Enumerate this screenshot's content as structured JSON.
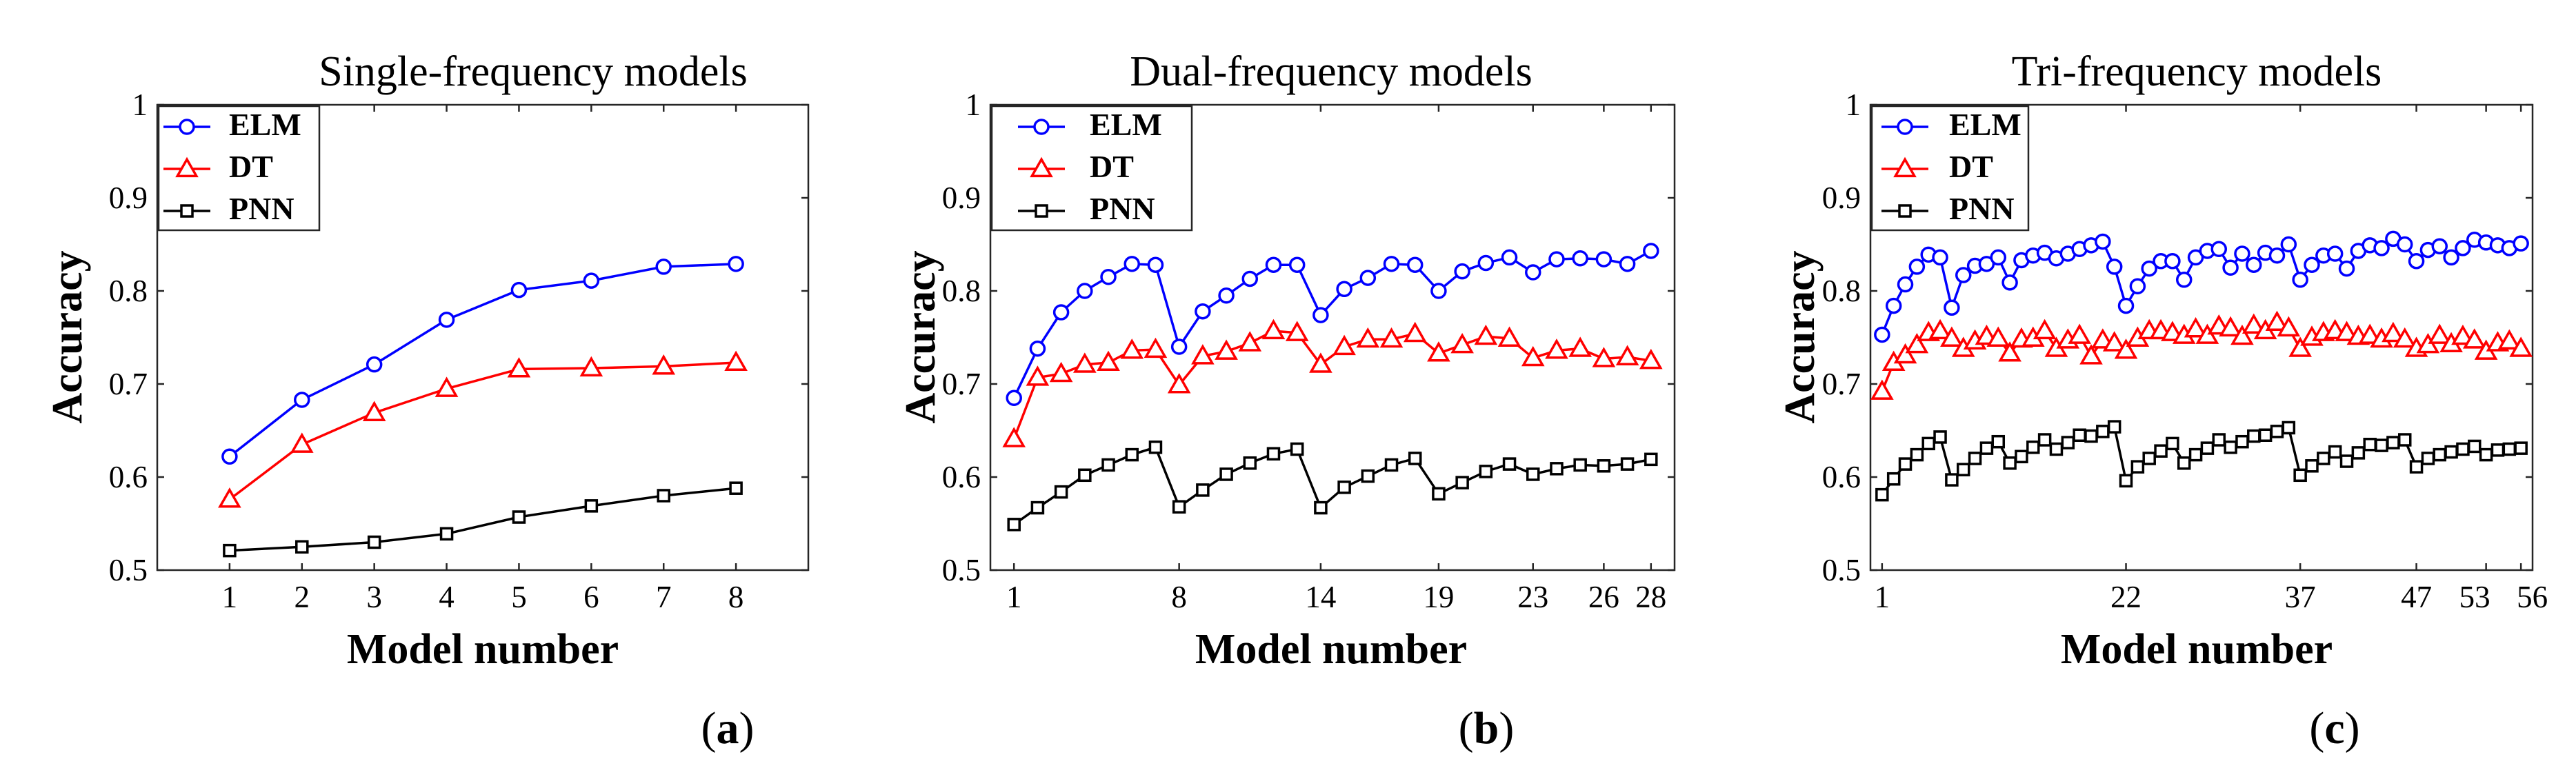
{
  "chart_data": [
    {
      "type": "line",
      "title": "Single-frequency models",
      "xlabel": "Model number",
      "ylabel": "Accuracy",
      "caption_pre": "(",
      "caption_letter": "a",
      "caption_post": ")",
      "xlim": [
        0,
        9
      ],
      "ylim": [
        0.5,
        1.0
      ],
      "yticks": [
        "0.5",
        "0.6",
        "0.7",
        "0.8",
        "0.9",
        "1"
      ],
      "ytick_values": [
        0.5,
        0.6,
        0.7,
        0.8,
        0.9,
        1.0
      ],
      "xticks": [
        1,
        2,
        3,
        4,
        5,
        6,
        7,
        8
      ],
      "x": [
        1,
        2,
        3,
        4,
        5,
        6,
        7,
        8
      ],
      "series": [
        {
          "name": "ELM",
          "color": "#0000ff",
          "marker": "circle",
          "values": [
            0.622,
            0.683,
            0.721,
            0.769,
            0.801,
            0.811,
            0.826,
            0.829
          ]
        },
        {
          "name": "DT",
          "color": "#ff0000",
          "marker": "triangle",
          "values": [
            0.576,
            0.635,
            0.669,
            0.695,
            0.716,
            0.717,
            0.719,
            0.723
          ]
        },
        {
          "name": "PNN",
          "color": "#000000",
          "marker": "square",
          "values": [
            0.521,
            0.525,
            0.53,
            0.539,
            0.557,
            0.569,
            0.58,
            0.588
          ]
        }
      ]
    },
    {
      "type": "line",
      "title": "Dual-frequency models",
      "xlabel": "Model number",
      "ylabel": "Accuracy",
      "caption_pre": "(",
      "caption_letter": "b",
      "caption_post": ")",
      "xlim": [
        0,
        29
      ],
      "ylim": [
        0.5,
        1.0
      ],
      "yticks": [
        "0.5",
        "0.6",
        "0.7",
        "0.8",
        "0.9",
        "1"
      ],
      "ytick_values": [
        0.5,
        0.6,
        0.7,
        0.8,
        0.9,
        1.0
      ],
      "xticks": [
        1,
        8,
        14,
        19,
        23,
        26,
        28
      ],
      "x": [
        1,
        2,
        3,
        4,
        5,
        6,
        7,
        8,
        9,
        10,
        11,
        12,
        13,
        14,
        15,
        16,
        17,
        18,
        19,
        20,
        21,
        22,
        23,
        24,
        25,
        26,
        27,
        28
      ],
      "series": [
        {
          "name": "ELM",
          "color": "#0000ff",
          "marker": "circle",
          "values": [
            0.685,
            0.738,
            0.777,
            0.8,
            0.815,
            0.829,
            0.828,
            0.74,
            0.778,
            0.795,
            0.813,
            0.828,
            0.828,
            0.774,
            0.802,
            0.814,
            0.829,
            0.828,
            0.8,
            0.821,
            0.83,
            0.836,
            0.82,
            0.834,
            0.835,
            0.834,
            0.829,
            0.843
          ]
        },
        {
          "name": "DT",
          "color": "#ff0000",
          "marker": "triangle",
          "values": [
            0.641,
            0.707,
            0.711,
            0.721,
            0.723,
            0.736,
            0.737,
            0.699,
            0.73,
            0.735,
            0.744,
            0.757,
            0.755,
            0.721,
            0.74,
            0.748,
            0.748,
            0.754,
            0.733,
            0.742,
            0.751,
            0.749,
            0.728,
            0.736,
            0.738,
            0.727,
            0.729,
            0.725
          ]
        },
        {
          "name": "PNN",
          "color": "#000000",
          "marker": "square",
          "values": [
            0.549,
            0.567,
            0.584,
            0.602,
            0.613,
            0.624,
            0.632,
            0.568,
            0.586,
            0.603,
            0.615,
            0.625,
            0.63,
            0.567,
            0.589,
            0.601,
            0.613,
            0.62,
            0.582,
            0.594,
            0.606,
            0.614,
            0.603,
            0.609,
            0.613,
            0.612,
            0.614,
            0.619
          ]
        }
      ]
    },
    {
      "type": "line",
      "title": "Tri-frequency models",
      "xlabel": "Model number",
      "ylabel": "Accuracy",
      "caption_pre": "(",
      "caption_letter": "c",
      "caption_post": ")",
      "xlim": [
        0,
        57
      ],
      "ylim": [
        0.5,
        1.0
      ],
      "yticks": [
        "0.5",
        "0.6",
        "0.7",
        "0.8",
        "0.9",
        "1"
      ],
      "ytick_values": [
        0.5,
        0.6,
        0.7,
        0.8,
        0.9,
        1.0
      ],
      "xticks": [
        1,
        22,
        37,
        47,
        53,
        56
      ],
      "xtick_labels": [
        "1",
        "22",
        "37",
        "47",
        "53",
        "56"
      ],
      "xtick_align": [
        "middle",
        "middle",
        "middle",
        "middle",
        "end",
        "start"
      ],
      "x": [
        1,
        2,
        3,
        4,
        5,
        6,
        7,
        8,
        9,
        10,
        11,
        12,
        13,
        14,
        15,
        16,
        17,
        18,
        19,
        20,
        21,
        22,
        23,
        24,
        25,
        26,
        27,
        28,
        29,
        30,
        31,
        32,
        33,
        34,
        35,
        36,
        37,
        38,
        39,
        40,
        41,
        42,
        43,
        44,
        45,
        46,
        47,
        48,
        49,
        50,
        51,
        52,
        53,
        54,
        55,
        56
      ],
      "series": [
        {
          "name": "ELM",
          "color": "#0000ff",
          "marker": "circle",
          "values": [
            0.753,
            0.784,
            0.807,
            0.826,
            0.839,
            0.836,
            0.782,
            0.817,
            0.827,
            0.829,
            0.836,
            0.809,
            0.833,
            0.838,
            0.841,
            0.835,
            0.84,
            0.845,
            0.849,
            0.853,
            0.826,
            0.784,
            0.805,
            0.824,
            0.832,
            0.832,
            0.812,
            0.836,
            0.843,
            0.845,
            0.825,
            0.84,
            0.828,
            0.841,
            0.838,
            0.85,
            0.812,
            0.828,
            0.838,
            0.84,
            0.824,
            0.843,
            0.849,
            0.846,
            0.856,
            0.85,
            0.832,
            0.844,
            0.848,
            0.836,
            0.846,
            0.855,
            0.852,
            0.849,
            0.846,
            0.851
          ]
        },
        {
          "name": "DT",
          "color": "#ff0000",
          "marker": "triangle",
          "values": [
            0.692,
            0.723,
            0.731,
            0.742,
            0.755,
            0.757,
            0.749,
            0.738,
            0.746,
            0.751,
            0.749,
            0.733,
            0.748,
            0.749,
            0.757,
            0.738,
            0.747,
            0.752,
            0.73,
            0.747,
            0.744,
            0.736,
            0.749,
            0.757,
            0.757,
            0.755,
            0.752,
            0.759,
            0.752,
            0.762,
            0.76,
            0.751,
            0.763,
            0.757,
            0.766,
            0.76,
            0.738,
            0.75,
            0.755,
            0.757,
            0.755,
            0.751,
            0.752,
            0.748,
            0.754,
            0.748,
            0.738,
            0.742,
            0.752,
            0.743,
            0.751,
            0.747,
            0.735,
            0.744,
            0.746,
            0.738
          ]
        },
        {
          "name": "PNN",
          "color": "#000000",
          "marker": "square",
          "values": [
            0.581,
            0.598,
            0.614,
            0.624,
            0.636,
            0.643,
            0.597,
            0.608,
            0.62,
            0.631,
            0.638,
            0.615,
            0.622,
            0.632,
            0.64,
            0.63,
            0.637,
            0.645,
            0.644,
            0.649,
            0.654,
            0.596,
            0.611,
            0.62,
            0.628,
            0.636,
            0.615,
            0.624,
            0.631,
            0.64,
            0.632,
            0.638,
            0.644,
            0.645,
            0.649,
            0.653,
            0.602,
            0.612,
            0.62,
            0.627,
            0.617,
            0.626,
            0.635,
            0.634,
            0.637,
            0.64,
            0.611,
            0.62,
            0.624,
            0.627,
            0.63,
            0.633,
            0.624,
            0.629,
            0.63,
            0.631
          ]
        }
      ]
    }
  ]
}
